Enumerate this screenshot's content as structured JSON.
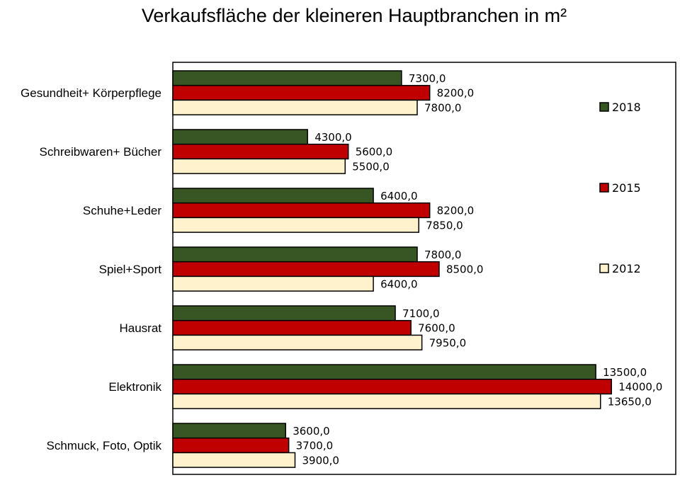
{
  "chart_data": {
    "type": "bar",
    "orientation": "horizontal",
    "title": "Verkaufsfläche der kleineren Hauptbranchen in m²",
    "categories": [
      "Gesundheit+ Körperpflege",
      "Schreibwaren+ Bücher",
      "Schuhe+Leder",
      "Spiel+Sport",
      "Hausrat",
      "Elektronik",
      "Schmuck, Foto, Optik"
    ],
    "series": [
      {
        "name": "2018",
        "color": "#375623",
        "values": [
          7300,
          4300,
          6400,
          7800,
          7100,
          13500,
          3600
        ],
        "labels": [
          "7300,0",
          "4300,0",
          "6400,0",
          "7800,0",
          "7100,0",
          "13500,0",
          "3600,0"
        ]
      },
      {
        "name": "2015",
        "color": "#c00000",
        "values": [
          8200,
          5600,
          8200,
          8500,
          7600,
          14000,
          3700
        ],
        "labels": [
          "8200,0",
          "5600,0",
          "8200,0",
          "8500,0",
          "7600,0",
          "14000,0",
          "3700,0"
        ]
      },
      {
        "name": "2012",
        "color": "#fff2cc",
        "values": [
          7800,
          5500,
          7850,
          6400,
          7950,
          13650,
          3900
        ],
        "labels": [
          "7800,0",
          "5500,0",
          "7850,0",
          "6400,0",
          "7950,0",
          "13650,0",
          "3900,0"
        ]
      }
    ],
    "xlim": [
      0,
      16000
    ],
    "grid": false,
    "legend_position": "right"
  }
}
